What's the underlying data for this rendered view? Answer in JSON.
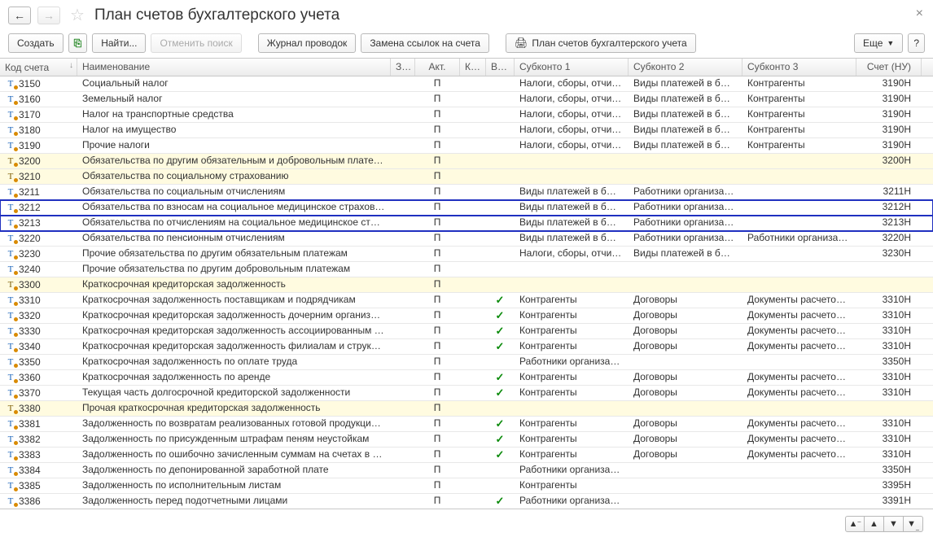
{
  "header": {
    "title": "План счетов бухгалтерского учета"
  },
  "toolbar": {
    "create": "Создать",
    "find": "Найти...",
    "cancel_search": "Отменить поиск",
    "journal": "Журнал проводок",
    "replace_refs": "Замена ссылок на счета",
    "print_plan": "План счетов бухгалтерского учета",
    "more": "Еще",
    "help": "?"
  },
  "columns": {
    "code": "Код счета",
    "name": "Наименование",
    "zab": "Заб.",
    "akt": "Акт.",
    "kol": "Кол.",
    "val": "Вал.",
    "s1": "Субконто 1",
    "s2": "Субконто 2",
    "s3": "Субконто 3",
    "schet": "Счет (НУ)"
  },
  "rows": [
    {
      "code": "3150",
      "name": "Социальный налог",
      "icon": "blue",
      "akt": "П",
      "val": "",
      "s1": "Налоги, сборы, отчисле...",
      "s2": "Виды платежей в бюдж...",
      "s3": "Контрагенты",
      "schet": "3190Н"
    },
    {
      "code": "3160",
      "name": "Земельный налог",
      "icon": "blue",
      "akt": "П",
      "val": "",
      "s1": "Налоги, сборы, отчисле...",
      "s2": "Виды платежей в бюдж...",
      "s3": "Контрагенты",
      "schet": "3190Н"
    },
    {
      "code": "3170",
      "name": "Налог на транспортные средства",
      "icon": "blue",
      "akt": "П",
      "val": "",
      "s1": "Налоги, сборы, отчисле...",
      "s2": "Виды платежей в бюдж...",
      "s3": "Контрагенты",
      "schet": "3190Н"
    },
    {
      "code": "3180",
      "name": "Налог на имущество",
      "icon": "blue",
      "akt": "П",
      "val": "",
      "s1": "Налоги, сборы, отчисле...",
      "s2": "Виды платежей в бюдж...",
      "s3": "Контрагенты",
      "schet": "3190Н"
    },
    {
      "code": "3190",
      "name": "Прочие налоги",
      "icon": "blue",
      "akt": "П",
      "val": "",
      "s1": "Налоги, сборы, отчисле...",
      "s2": "Виды платежей в бюдж...",
      "s3": "Контрагенты",
      "schet": "3190Н"
    },
    {
      "code": "3200",
      "name": "Обязательства по другим обязательным и добровольным платежам",
      "icon": "tan",
      "yellow": true,
      "akt": "П",
      "val": "",
      "s1": "",
      "s2": "",
      "s3": "",
      "schet": "3200Н"
    },
    {
      "code": "3210",
      "name": "Обязательства по социальному страхованию",
      "icon": "tan",
      "yellow": true,
      "akt": "П",
      "val": "",
      "s1": "",
      "s2": "",
      "s3": "",
      "schet": ""
    },
    {
      "code": "3211",
      "name": "Обязательства по социальным отчислениям",
      "icon": "blue",
      "akt": "П",
      "val": "",
      "s1": "Виды платежей в бюдж...",
      "s2": "Работники организации",
      "s3": "",
      "schet": "3211Н"
    },
    {
      "code": "3212",
      "name": "Обязательства по взносам на социальное медицинское страхование",
      "icon": "blue",
      "hl": true,
      "akt": "П",
      "val": "",
      "s1": "Виды платежей в бюдж...",
      "s2": "Работники организации",
      "s3": "",
      "schet": "3212Н"
    },
    {
      "code": "3213",
      "name": "Обязательства по отчислениям на социальное медицинское страхо...",
      "icon": "blue",
      "hl": true,
      "akt": "П",
      "val": "",
      "s1": "Виды платежей в бюдж...",
      "s2": "Работники организации",
      "s3": "",
      "schet": "3213Н"
    },
    {
      "code": "3220",
      "name": "Обязательства по пенсионным отчислениям",
      "icon": "blue",
      "akt": "П",
      "val": "",
      "s1": "Виды платежей в бюдж...",
      "s2": "Работники организации",
      "s3": "Работники организации",
      "schet": "3220Н"
    },
    {
      "code": "3230",
      "name": "Прочие обязательства по другим обязательным платежам",
      "icon": "blue",
      "akt": "П",
      "val": "",
      "s1": "Налоги, сборы, отчисле...",
      "s2": "Виды платежей в бюдж...",
      "s3": "",
      "schet": "3230Н"
    },
    {
      "code": "3240",
      "name": "Прочие обязательства по другим добровольным платежам",
      "icon": "blue",
      "akt": "П",
      "val": "",
      "s1": "",
      "s2": "",
      "s3": "",
      "schet": ""
    },
    {
      "code": "3300",
      "name": "Краткосрочная кредиторская задолженность",
      "icon": "tan",
      "yellow": true,
      "akt": "П",
      "val": "",
      "s1": "",
      "s2": "",
      "s3": "",
      "schet": ""
    },
    {
      "code": "3310",
      "name": "Краткосрочная задолженность поставщикам и подрядчикам",
      "icon": "blue",
      "akt": "П",
      "val": "✓",
      "s1": "Контрагенты",
      "s2": "Договоры",
      "s3": "Документы расчетов с ...",
      "schet": "3310Н"
    },
    {
      "code": "3320",
      "name": "Краткосрочная кредиторская задолженность дочерним организаци...",
      "icon": "blue",
      "akt": "П",
      "val": "✓",
      "s1": "Контрагенты",
      "s2": "Договоры",
      "s3": "Документы расчетов с ...",
      "schet": "3310Н"
    },
    {
      "code": "3330",
      "name": "Краткосрочная кредиторская задолженность ассоциированным и с...",
      "icon": "blue",
      "akt": "П",
      "val": "✓",
      "s1": "Контрагенты",
      "s2": "Договоры",
      "s3": "Документы расчетов с ...",
      "schet": "3310Н"
    },
    {
      "code": "3340",
      "name": "Краткосрочная кредиторская задолженность филиалам и структур...",
      "icon": "blue",
      "akt": "П",
      "val": "✓",
      "s1": "Контрагенты",
      "s2": "Договоры",
      "s3": "Документы расчетов с ...",
      "schet": "3310Н"
    },
    {
      "code": "3350",
      "name": "Краткосрочная задолженность по оплате труда",
      "icon": "blue",
      "akt": "П",
      "val": "",
      "s1": "Работники организации",
      "s2": "",
      "s3": "",
      "schet": "3350Н"
    },
    {
      "code": "3360",
      "name": "Краткосрочная задолженность по аренде",
      "icon": "blue",
      "akt": "П",
      "val": "✓",
      "s1": "Контрагенты",
      "s2": "Договоры",
      "s3": "Документы расчетов с ...",
      "schet": "3310Н"
    },
    {
      "code": "3370",
      "name": "Текущая часть долгосрочной кредиторской задолженности",
      "icon": "blue",
      "akt": "П",
      "val": "✓",
      "s1": "Контрагенты",
      "s2": "Договоры",
      "s3": "Документы расчетов с ...",
      "schet": "3310Н"
    },
    {
      "code": "3380",
      "name": "Прочая краткосрочная кредиторская задолженность",
      "icon": "tan",
      "yellow": true,
      "akt": "П",
      "val": "",
      "s1": "",
      "s2": "",
      "s3": "",
      "schet": ""
    },
    {
      "code": "3381",
      "name": "Задолженность по возвратам реализованных готовой продукции, т...",
      "icon": "blue",
      "akt": "П",
      "val": "✓",
      "s1": "Контрагенты",
      "s2": "Договоры",
      "s3": "Документы расчетов с ...",
      "schet": "3310Н"
    },
    {
      "code": "3382",
      "name": "Задолженность по присужденным штрафам пеням неустойкам",
      "icon": "blue",
      "akt": "П",
      "val": "✓",
      "s1": "Контрагенты",
      "s2": "Договоры",
      "s3": "Документы расчетов с ...",
      "schet": "3310Н"
    },
    {
      "code": "3383",
      "name": "Задолженность по ошибочно зачисленным суммам на счетах в бан...",
      "icon": "blue",
      "akt": "П",
      "val": "✓",
      "s1": "Контрагенты",
      "s2": "Договоры",
      "s3": "Документы расчетов с ...",
      "schet": "3310Н"
    },
    {
      "code": "3384",
      "name": "Задолженность по депонированной заработной плате",
      "icon": "blue",
      "akt": "П",
      "val": "",
      "s1": "Работники организации",
      "s2": "",
      "s3": "",
      "schet": "3350Н"
    },
    {
      "code": "3385",
      "name": "Задолженность по исполнительным листам",
      "icon": "blue",
      "akt": "П",
      "val": "",
      "s1": "Контрагенты",
      "s2": "",
      "s3": "",
      "schet": "3395Н"
    },
    {
      "code": "3386",
      "name": "Задолженность перед подотчетными лицами",
      "icon": "blue",
      "akt": "П",
      "val": "✓",
      "s1": "Работники организации",
      "s2": "",
      "s3": "",
      "schet": "3391Н"
    }
  ]
}
